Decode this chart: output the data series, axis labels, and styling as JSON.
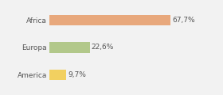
{
  "categories": [
    "Africa",
    "Europa",
    "America"
  ],
  "values": [
    67.7,
    22.6,
    9.7
  ],
  "labels": [
    "67,7%",
    "22,6%",
    "9,7%"
  ],
  "bar_colors": [
    "#e8a87c",
    "#b2c88a",
    "#f2d060"
  ],
  "background_color": "#f2f2f2",
  "bar_height": 0.38,
  "xlim": [
    0,
    82
  ],
  "label_fontsize": 6.5,
  "tick_fontsize": 6.5,
  "figsize": [
    2.8,
    1.2
  ],
  "dpi": 100
}
